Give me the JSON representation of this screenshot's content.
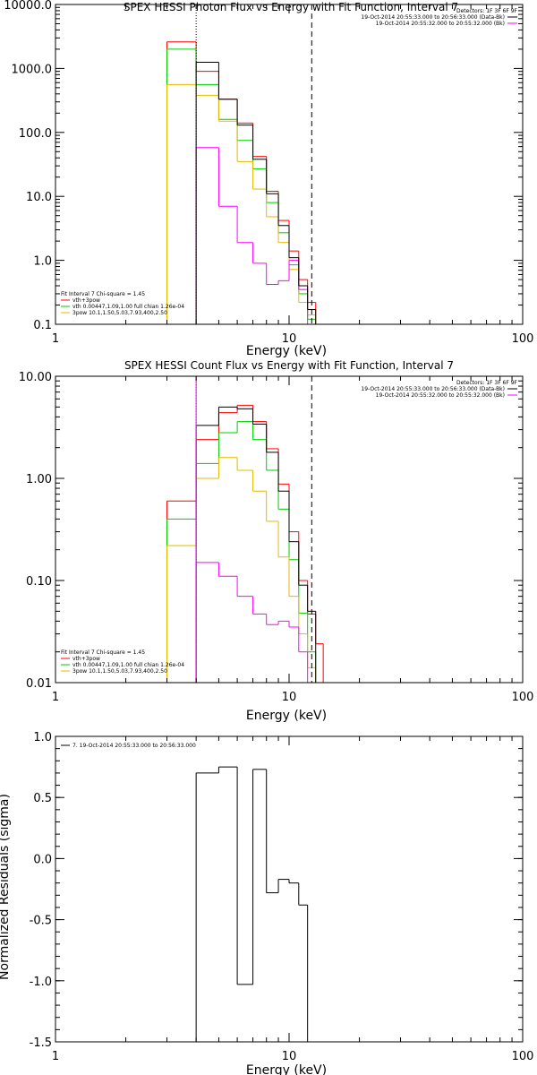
{
  "chart_data": [
    {
      "type": "line",
      "title": "SPEX HESSI Photon Flux vs Energy with Fit Function, Interval 7",
      "xlabel": "Energy (keV)",
      "ylabel": "",
      "xscale": "log",
      "yscale": "log",
      "xlim": [
        1,
        100
      ],
      "ylim": [
        0.1,
        10000
      ],
      "xticks": [
        {
          "v": 1,
          "label": "1"
        },
        {
          "v": 10,
          "label": "10"
        },
        {
          "v": 100,
          "label": "100"
        }
      ],
      "yticks": [
        {
          "v": 0.1,
          "label": "0.1"
        },
        {
          "v": 1,
          "label": "1.0"
        },
        {
          "v": 10,
          "label": "10.0"
        },
        {
          "v": 100,
          "label": "100.0"
        },
        {
          "v": 1000,
          "label": "1000.0"
        },
        {
          "v": 10000,
          "label": "10000.0"
        }
      ],
      "vlines": [
        {
          "x": 4.0,
          "style": "dotted",
          "color": "#000000"
        },
        {
          "x": 12.5,
          "style": "dashed",
          "color": "#000000"
        }
      ],
      "bin_edges": [
        3.0,
        4.0,
        5.0,
        6.0,
        7.0,
        8.0,
        9.0,
        10.0,
        11.0,
        12.0,
        13.0,
        14.0
      ],
      "series": [
        {
          "name": "",
          "color": "#ff0000",
          "values": [
            2600,
            900,
            330,
            140,
            42,
            12,
            4.2,
            1.4,
            0.5,
            0.22,
            null
          ]
        },
        {
          "name": "",
          "color": "#00cc00",
          "values": [
            2000,
            560,
            160,
            75,
            27,
            8,
            2.7,
            0.85,
            0.3,
            0.12,
            null
          ]
        },
        {
          "name": "",
          "color": "#e6b800",
          "values": [
            560,
            380,
            150,
            35,
            13,
            4.8,
            1.9,
            0.72,
            0.22,
            0.14,
            null
          ]
        },
        {
          "name": "",
          "color": "#ff00ff",
          "values": [
            null,
            58,
            7,
            1.9,
            0.9,
            0.42,
            0.48,
            1.0,
            0.35,
            null,
            null
          ]
        },
        {
          "name": "",
          "color": "#000000",
          "values": [
            null,
            1250,
            330,
            130,
            38,
            11,
            3.5,
            1.1,
            0.4,
            0.17,
            null
          ]
        }
      ],
      "legend_left": {
        "header": "Fit Interval  7   Chi-square = 1.45",
        "entries": [
          {
            "label": "vth+3pow",
            "color": "#ff0000"
          },
          {
            "label": "vth 0.00447,1.09,1.00  full chian 1.26e-04",
            "color": "#00cc00"
          },
          {
            "label": "3pow 10.1,1.50,5.03,7.93,400,2.50",
            "color": "#e6b800"
          }
        ]
      },
      "legend_right": {
        "header": "Detectors: 1F 3F 6F 9F",
        "entries": [
          {
            "label": "19-Oct-2014 20:55:33.000 to 20:56:33.000 (Data-Bk)",
            "color": "#000000"
          },
          {
            "label": "19-Oct-2014 20:55:32.000 to 20:55:32.000 (Bk)",
            "color": "#ff00ff"
          }
        ]
      }
    },
    {
      "type": "line",
      "title": "SPEX HESSI Count Flux vs Energy with Fit Function, Interval 7",
      "xlabel": "Energy (keV)",
      "ylabel": "",
      "xscale": "log",
      "yscale": "log",
      "xlim": [
        1,
        100
      ],
      "ylim": [
        0.01,
        10
      ],
      "xticks": [
        {
          "v": 1,
          "label": "1"
        },
        {
          "v": 10,
          "label": "10"
        },
        {
          "v": 100,
          "label": "100"
        }
      ],
      "yticks": [
        {
          "v": 0.01,
          "label": "0.01"
        },
        {
          "v": 0.1,
          "label": "0.10"
        },
        {
          "v": 1,
          "label": "1.00"
        },
        {
          "v": 10,
          "label": "10.00"
        }
      ],
      "vlines": [
        {
          "x": 4.0,
          "style": "dotted",
          "color": "#000000"
        },
        {
          "x": 4.0,
          "style": "solid",
          "color": "#ff00ff"
        },
        {
          "x": 12.5,
          "style": "dashed",
          "color": "#000000"
        }
      ],
      "bin_edges": [
        3.0,
        4.0,
        5.0,
        6.0,
        7.0,
        8.0,
        9.0,
        10.0,
        11.0,
        12.0,
        13.0,
        14.0
      ],
      "series": [
        {
          "name": "",
          "color": "#ff0000",
          "values": [
            0.6,
            2.4,
            4.4,
            5.2,
            3.6,
            1.95,
            0.88,
            0.3,
            0.1,
            0.047,
            0.024
          ]
        },
        {
          "name": "",
          "color": "#00cc00",
          "values": [
            0.4,
            1.4,
            2.8,
            3.6,
            2.4,
            1.2,
            0.5,
            0.16,
            0.048,
            0.02,
            0.01
          ]
        },
        {
          "name": "",
          "color": "#e6b800",
          "values": [
            0.22,
            1.0,
            1.6,
            1.2,
            0.75,
            0.38,
            0.17,
            0.07,
            0.03,
            0.014,
            0.01
          ]
        },
        {
          "name": "",
          "color": "#ff00ff",
          "values": [
            null,
            0.15,
            0.11,
            0.07,
            0.047,
            0.037,
            0.04,
            0.035,
            0.02,
            null,
            null
          ]
        },
        {
          "name": "",
          "color": "#000000",
          "values": [
            null,
            3.3,
            5.0,
            4.8,
            3.4,
            1.8,
            0.75,
            0.24,
            0.09,
            0.05,
            null
          ]
        }
      ],
      "legend_left": {
        "header": "Fit Interval  7   Chi-square = 1.45",
        "entries": [
          {
            "label": "vth+3pow",
            "color": "#ff0000"
          },
          {
            "label": "vth 0.00447,1.09,1.00  full chian 1.26e-04",
            "color": "#00cc00"
          },
          {
            "label": "3pow 10.1,1.50,5.03,7.93,400,2.50",
            "color": "#e6b800"
          }
        ]
      },
      "legend_right": {
        "header": "Detectors: 1F 3F 6F 9F",
        "entries": [
          {
            "label": "19-Oct-2014 20:55:33.000 to 20:56:33.000 (Data-Bk)",
            "color": "#000000"
          },
          {
            "label": "19-Oct-2014 20:55:32.000 to 20:55:32.000 (Bk)",
            "color": "#ff00ff"
          }
        ]
      }
    },
    {
      "type": "line",
      "title": "",
      "xlabel": "Energy (keV)",
      "ylabel": "Normalized Residuals (sigma)",
      "xscale": "log",
      "yscale": "linear",
      "xlim": [
        1,
        100
      ],
      "ylim": [
        -1.5,
        1.0
      ],
      "xticks": [
        {
          "v": 1,
          "label": "1"
        },
        {
          "v": 10,
          "label": "10"
        },
        {
          "v": 100,
          "label": "100"
        }
      ],
      "yticks": [
        {
          "v": -1.5,
          "label": "-1.5"
        },
        {
          "v": -1.0,
          "label": "-1.0"
        },
        {
          "v": -0.5,
          "label": "-0.5"
        },
        {
          "v": 0.0,
          "label": "0.0"
        },
        {
          "v": 0.5,
          "label": "0.5"
        },
        {
          "v": 1.0,
          "label": "1.0"
        }
      ],
      "vlines": [],
      "bin_edges": [
        4.0,
        5.0,
        6.0,
        7.0,
        8.0,
        9.0,
        10.0,
        11.0,
        12.0
      ],
      "series": [
        {
          "name": "",
          "color": "#000000",
          "values": [
            0.7,
            0.75,
            -1.03,
            0.73,
            -0.28,
            -0.17,
            -0.2,
            -0.38
          ]
        }
      ],
      "legend_left": {
        "header": "",
        "entries": [
          {
            "label": "7. 19-Oct-2014 20:55:33.000 to 20:56:33.000",
            "color": "#000000"
          }
        ]
      },
      "legend_right": {
        "header": "",
        "entries": []
      }
    }
  ]
}
